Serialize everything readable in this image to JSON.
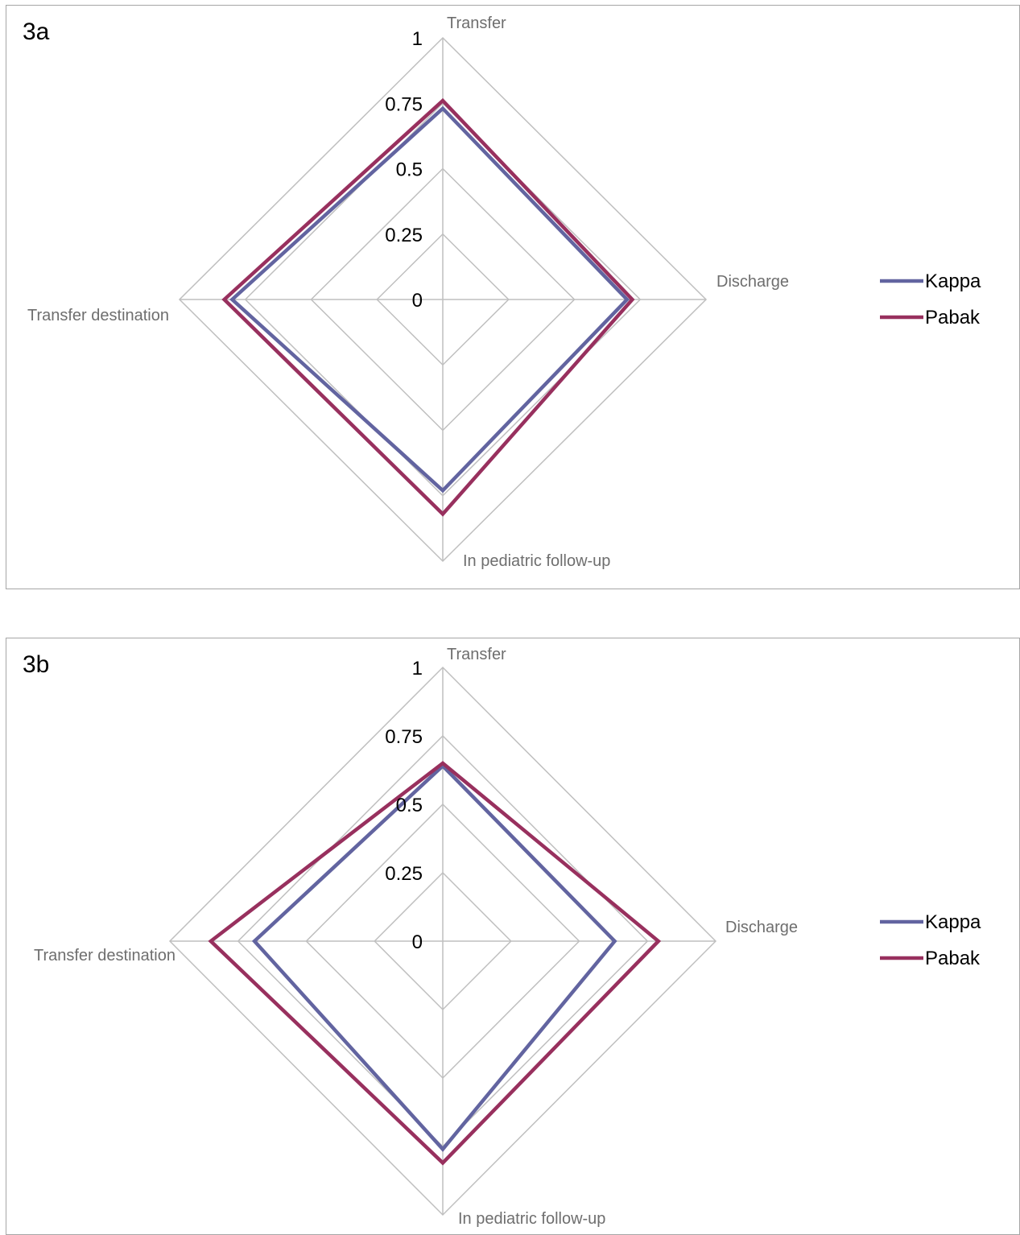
{
  "chart_data": [
    {
      "panel_label": "3a",
      "type": "radar",
      "axes": [
        "Transfer",
        "Discharge",
        "In pediatric follow-up",
        "Transfer destination"
      ],
      "r_ticks": [
        "0",
        "0.25",
        "0.5",
        "0.75",
        "1"
      ],
      "rlim": [
        0,
        1
      ],
      "grid": true,
      "legend_position": "right",
      "series": [
        {
          "name": "Kappa",
          "color": "#6264a0",
          "values": [
            0.73,
            0.7,
            0.73,
            0.8
          ]
        },
        {
          "name": "Pabak",
          "color": "#98305e",
          "values": [
            0.76,
            0.72,
            0.82,
            0.83
          ]
        }
      ]
    },
    {
      "panel_label": "3b",
      "type": "radar",
      "axes": [
        "Transfer",
        "Discharge",
        "In pediatric follow-up",
        "Transfer destination"
      ],
      "r_ticks": [
        "0",
        "0.25",
        "0.5",
        "0.75",
        "1"
      ],
      "rlim": [
        0,
        1
      ],
      "grid": true,
      "legend_position": "right",
      "series": [
        {
          "name": "Kappa",
          "color": "#6264a0",
          "values": [
            0.64,
            0.63,
            0.76,
            0.69
          ]
        },
        {
          "name": "Pabak",
          "color": "#98305e",
          "values": [
            0.65,
            0.79,
            0.81,
            0.85
          ]
        }
      ]
    }
  ]
}
